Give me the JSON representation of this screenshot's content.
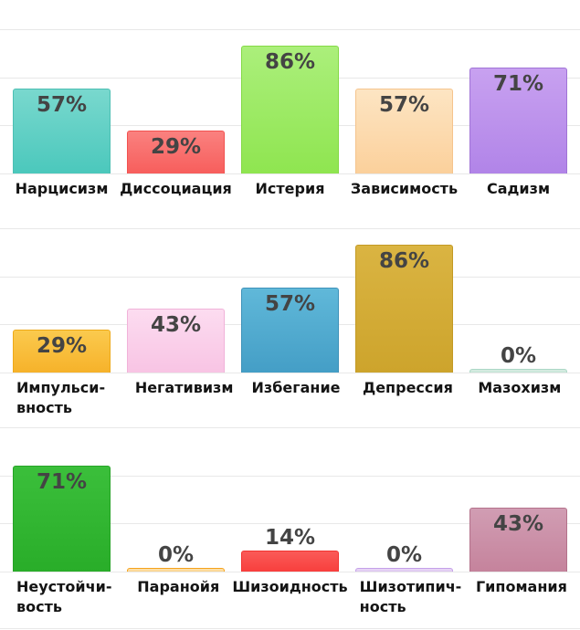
{
  "page": {
    "background": "#ffffff",
    "grid_color": "#e8e8e8",
    "value_label_color": "#444444",
    "category_label_color": "#141414"
  },
  "chart_data": [
    {
      "type": "bar",
      "title": "",
      "xlabel": "",
      "ylabel": "",
      "ylim": [
        0,
        100
      ],
      "grid": true,
      "categories": [
        "Нарцисизм",
        "Диссоциация",
        "Истерия",
        "Зависимость",
        "Садизм"
      ],
      "category_lines": [
        [
          "Нарцисизм"
        ],
        [
          "Диссоциация"
        ],
        [
          "Истерия"
        ],
        [
          "Зависимость"
        ],
        [
          "Садизм"
        ]
      ],
      "values": [
        57,
        29,
        86,
        57,
        71
      ],
      "value_labels": [
        "57%",
        "29%",
        "86%",
        "57%",
        "71%"
      ],
      "colors": [
        {
          "top": "#79d8ce",
          "bottom": "#4bc8bc",
          "border": "#4dbfb3"
        },
        {
          "top": "#fa817f",
          "bottom": "#f75e5c",
          "border": "#f25250"
        },
        {
          "top": "#abef7b",
          "bottom": "#8fe550",
          "border": "#83d945"
        },
        {
          "top": "#fde5c3",
          "bottom": "#fbd09b",
          "border": "#f5c48d"
        },
        {
          "top": "#c8a1f0",
          "bottom": "#b184e8",
          "border": "#a073d6"
        }
      ]
    },
    {
      "type": "bar",
      "title": "",
      "xlabel": "",
      "ylabel": "",
      "ylim": [
        0,
        100
      ],
      "grid": true,
      "categories": [
        "Импульси-вность",
        "Негативизм",
        "Избегание",
        "Депрессия",
        "Мазохизм"
      ],
      "category_lines": [
        [
          "Импульси-",
          "вность"
        ],
        [
          "Негативизм"
        ],
        [
          "Избегание"
        ],
        [
          "Депрессия"
        ],
        [
          "Мазохизм"
        ]
      ],
      "values": [
        29,
        43,
        57,
        86,
        0
      ],
      "value_labels": [
        "29%",
        "43%",
        "57%",
        "86%",
        "0%"
      ],
      "colors": [
        {
          "top": "#fbca4e",
          "bottom": "#f6b22a",
          "border": "#eea918"
        },
        {
          "top": "#fcdcf0",
          "bottom": "#f8c4e4",
          "border": "#f1b2d9"
        },
        {
          "top": "#60b8d9",
          "bottom": "#449ec6",
          "border": "#3d91b9"
        },
        {
          "top": "#dab442",
          "bottom": "#cda42c",
          "border": "#c39a24"
        },
        {
          "top": "#d9eee4",
          "bottom": "#c4e4d6",
          "border": "#abd7c5"
        }
      ]
    },
    {
      "type": "bar",
      "title": "",
      "xlabel": "",
      "ylabel": "",
      "ylim": [
        0,
        100
      ],
      "grid": true,
      "categories": [
        "Неустойчи-вость",
        "Паранойя",
        "Шизоидность",
        "Шизотипич-ность",
        "Гипомания"
      ],
      "category_lines": [
        [
          "Неустойчи-",
          "вость"
        ],
        [
          "Паранойя"
        ],
        [
          "Шизоидность"
        ],
        [
          "Шизотипич-",
          "ность"
        ],
        [
          "Гипомания"
        ]
      ],
      "values": [
        71,
        0,
        14,
        0,
        43
      ],
      "value_labels": [
        "71%",
        "0%",
        "14%",
        "0%",
        "43%"
      ],
      "colors": [
        {
          "top": "#3bbf3b",
          "bottom": "#29ad29",
          "border": "#25a325"
        },
        {
          "top": "#fde3b0",
          "bottom": "#fbd48c",
          "border": "#f5a21c"
        },
        {
          "top": "#fa5a58",
          "bottom": "#f83f3d",
          "border": "#f23331"
        },
        {
          "top": "#ead9f7",
          "bottom": "#ddc6f0",
          "border": "#c4a0e8"
        },
        {
          "top": "#d19db3",
          "bottom": "#c5839c",
          "border": "#b3718a"
        }
      ]
    }
  ]
}
